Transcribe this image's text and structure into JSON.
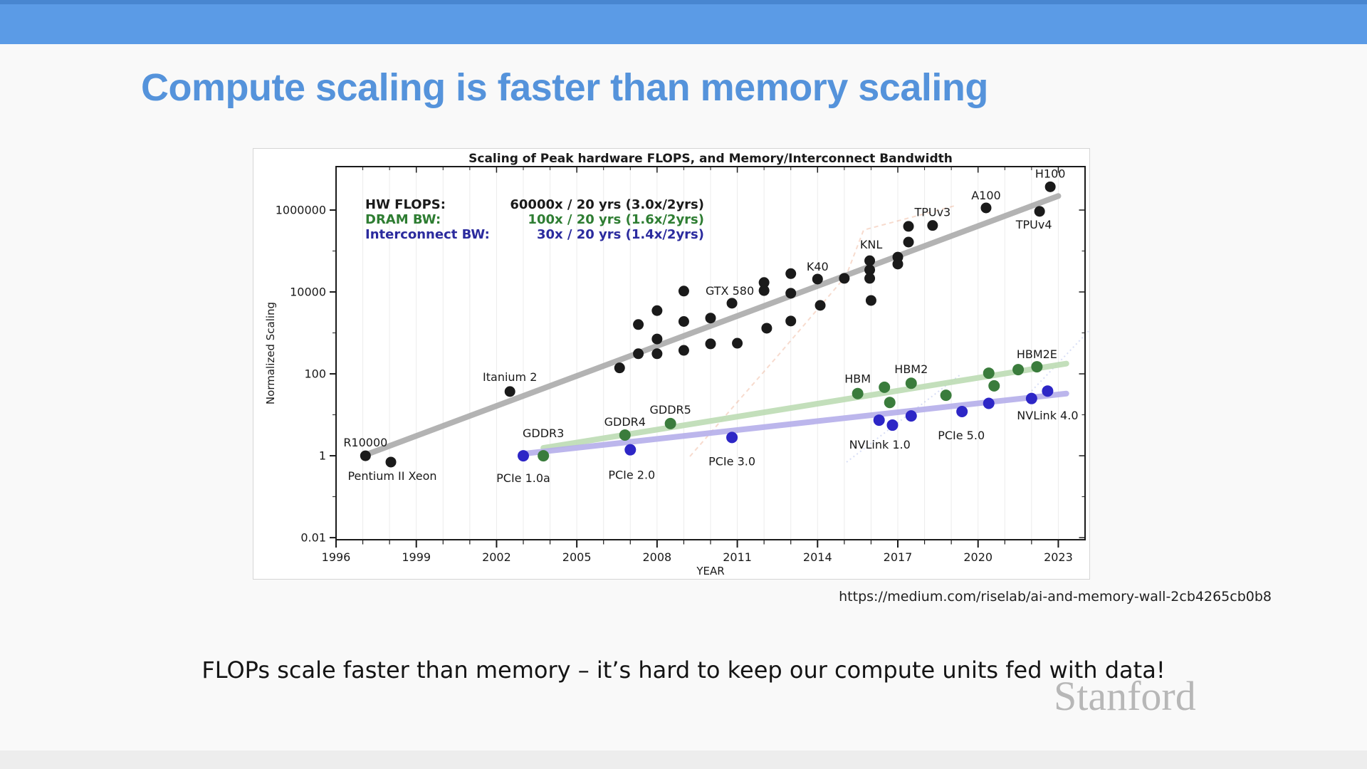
{
  "slide": {
    "title": "Compute scaling is faster than memory scaling",
    "source_url": "https://medium.com/riselab/ai-and-memory-wall-2cb4265cb0b8",
    "takeaway": "FLOPs scale faster than memory – it’s hard to keep our compute units fed with data!",
    "watermark": "Stanford",
    "colors": {
      "accent_bar": "#5b9be6",
      "accent_bar_edge": "#4886d0",
      "title_blue": "#5593db",
      "watermark_gray": "#b2b2b2"
    }
  },
  "chart_data": {
    "type": "scatter",
    "title": "Scaling of Peak hardware FLOPS, and Memory/Interconnect Bandwidth",
    "xlabel": "YEAR",
    "ylabel": "Normalized Scaling",
    "xlim": [
      1996,
      2024
    ],
    "ylim": [
      0.0089,
      11500000
    ],
    "x_ticks": [
      1996,
      1999,
      2002,
      2005,
      2008,
      2011,
      2014,
      2017,
      2020,
      2023
    ],
    "y_ticks": [
      1000000,
      10000,
      100,
      1,
      0.01
    ],
    "grid": "vertical-yearly",
    "legend_position": "top-left-inside",
    "legend": [
      {
        "name": "HW FLOPS:",
        "value": "60000x / 20 yrs (3.0x/2yrs)",
        "color": "#1a1a1a"
      },
      {
        "name": "DRAM BW:",
        "value": "100x / 20 yrs (1.6x/2yrs)",
        "color": "#2e7d32"
      },
      {
        "name": "Interconnect BW:",
        "value": "30x / 20 yrs (1.4x/2yrs)",
        "color": "#2b2b9e"
      }
    ],
    "series": [
      {
        "name": "HW FLOPS",
        "dot_color": "#1a1a1a",
        "trend_color": "#ababab",
        "trend": [
          [
            1997.1,
            1.05
          ],
          [
            2023.0,
            2200000
          ]
        ],
        "points": [
          [
            1997.1,
            1.0,
            "R10000",
            0,
            -13,
            "middle"
          ],
          [
            1998.05,
            0.7,
            "Pentium II Xeon",
            2,
            25,
            "middle"
          ],
          [
            2002.5,
            37,
            "Itanium 2",
            0,
            -15,
            "middle"
          ],
          [
            2006.6,
            140
          ],
          [
            2007.3,
            1600
          ],
          [
            2007.3,
            310
          ],
          [
            2008.0,
            3500
          ],
          [
            2008.0,
            710
          ],
          [
            2008.0,
            310
          ],
          [
            2009.0,
            10500
          ],
          [
            2009.0,
            1900
          ],
          [
            2009.0,
            375
          ],
          [
            2010.0,
            2300
          ],
          [
            2010.0,
            540
          ],
          [
            2010.8,
            5300
          ],
          [
            2011.0,
            560
          ],
          [
            2012.0,
            17000
          ],
          [
            2012.0,
            10800,
            "GTX 580",
            -14,
            6,
            "end"
          ],
          [
            2012.1,
            1300
          ],
          [
            2013.0,
            28000
          ],
          [
            2013.0,
            9300
          ],
          [
            2013.0,
            1950
          ],
          [
            2014.0,
            20600,
            "K40",
            0,
            -12,
            "middle"
          ],
          [
            2014.1,
            4700
          ],
          [
            2015.0,
            21500
          ],
          [
            2015.95,
            58000,
            "KNL",
            2,
            -17,
            "middle"
          ],
          [
            2015.95,
            34500
          ],
          [
            2015.95,
            21500
          ],
          [
            2016.0,
            6200
          ],
          [
            2017.0,
            71000
          ],
          [
            2017.0,
            48000
          ],
          [
            2017.4,
            400000
          ],
          [
            2017.4,
            165000
          ],
          [
            2018.3,
            420000,
            "TPUv3",
            0,
            -13,
            "middle"
          ],
          [
            2020.3,
            1130000,
            "A100",
            0,
            -12,
            "middle"
          ],
          [
            2022.3,
            930000,
            "TPUv4",
            -8,
            24,
            "middle"
          ],
          [
            2022.7,
            3700000,
            "H100",
            0,
            -13,
            "middle"
          ]
        ]
      },
      {
        "name": "DRAM BW",
        "dot_color": "#3a7c3c",
        "trend_color": "#bcdcb4",
        "trend": [
          [
            2003.75,
            1.55
          ],
          [
            2023.3,
            178
          ]
        ],
        "points": [
          [
            2003.75,
            1.0,
            "GDDR3",
            0,
            -26,
            "middle"
          ],
          [
            2006.8,
            3.2,
            "GDDR4",
            0,
            -13,
            "middle"
          ],
          [
            2008.5,
            6.1,
            "GDDR5",
            0,
            -14,
            "middle"
          ],
          [
            2015.5,
            33,
            "HBM",
            0,
            -15,
            "middle"
          ],
          [
            2016.5,
            47
          ],
          [
            2016.7,
            20
          ],
          [
            2017.5,
            59,
            "HBM2",
            0,
            -14,
            "middle"
          ],
          [
            2018.8,
            30
          ],
          [
            2020.4,
            104
          ],
          [
            2020.6,
            51
          ],
          [
            2021.5,
            127
          ],
          [
            2022.2,
            149,
            "HBM2E",
            0,
            -12,
            "middle"
          ]
        ]
      },
      {
        "name": "Interconnect BW",
        "dot_color": "#2d26c6",
        "trend_color": "#b5aeea",
        "trend": [
          [
            2003.0,
            1.12
          ],
          [
            2023.3,
            33
          ]
        ],
        "points": [
          [
            2003.0,
            1.0,
            "PCIe 1.0a",
            0,
            37,
            "middle"
          ],
          [
            2007.0,
            1.4,
            "PCIe 2.0",
            2,
            41,
            "middle"
          ],
          [
            2010.8,
            2.8,
            "PCIe 3.0",
            0,
            39,
            "middle"
          ],
          [
            2016.3,
            7.4,
            "NVLink 1.0",
            1,
            40,
            "middle"
          ],
          [
            2016.8,
            5.6
          ],
          [
            2017.5,
            9.4
          ],
          [
            2019.4,
            12,
            "PCIe 5.0",
            -1,
            39,
            "middle"
          ],
          [
            2020.4,
            19
          ],
          [
            2022.0,
            25
          ],
          [
            2022.6,
            38,
            "NVLink 4.0",
            0,
            40,
            "middle"
          ]
        ]
      }
    ]
  }
}
